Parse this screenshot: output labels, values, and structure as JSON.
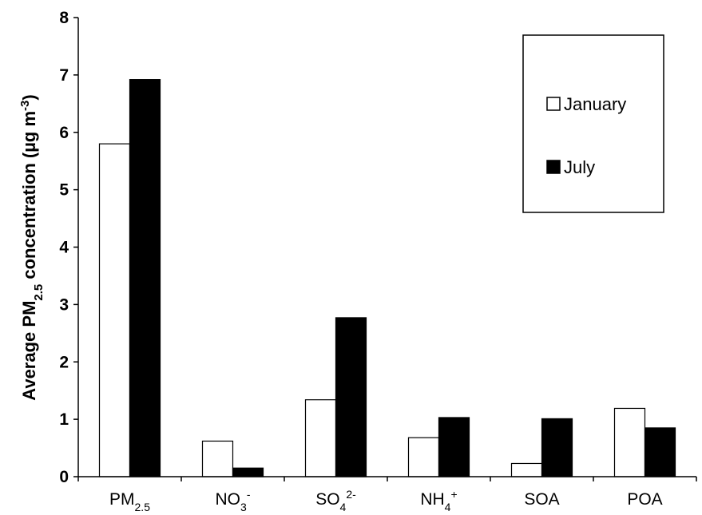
{
  "chart_data": {
    "type": "bar",
    "ylabel": {
      "pre": "Average PM",
      "sub": "2.5",
      "mid": " concentration (µg m",
      "sup": "-3",
      "post": ")"
    },
    "ylim": [
      0,
      8
    ],
    "yticks": [
      "0",
      "1",
      "2",
      "3",
      "4",
      "5",
      "6",
      "7",
      "8"
    ],
    "grid": false,
    "legend_position": "top-right",
    "categories": [
      {
        "base": "PM",
        "sub": "2.5",
        "sup": ""
      },
      {
        "base": "NO",
        "sub": "3",
        "sup": "-"
      },
      {
        "base": "SO",
        "sub": "4",
        "sup": "2-"
      },
      {
        "base": "NH",
        "sub": "4",
        "sup": "+"
      },
      {
        "base": "SOA",
        "sub": "",
        "sup": ""
      },
      {
        "base": "POA",
        "sub": "",
        "sup": ""
      }
    ],
    "series": [
      {
        "name": "January",
        "fill": "#ffffff",
        "values": [
          5.8,
          0.62,
          1.34,
          0.68,
          0.23,
          1.19
        ]
      },
      {
        "name": "July",
        "fill": "#000000",
        "values": [
          6.92,
          0.15,
          2.77,
          1.03,
          1.01,
          0.85
        ]
      }
    ]
  }
}
